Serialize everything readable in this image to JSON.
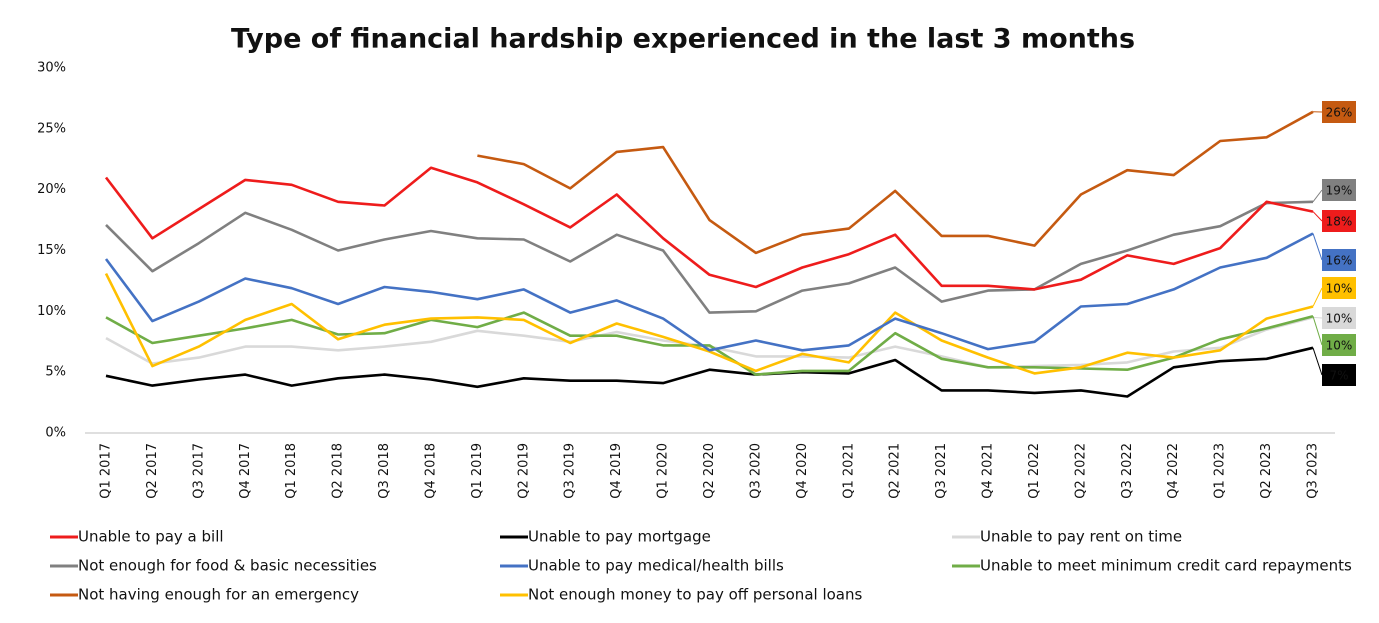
{
  "chart_data": {
    "type": "line",
    "title": "Type of financial hardship experienced in the last 3 months",
    "categories": [
      "Q1 2017",
      "Q2 2017",
      "Q3 2017",
      "Q4 2017",
      "Q1 2018",
      "Q2 2018",
      "Q3 2018",
      "Q4 2018",
      "Q1 2019",
      "Q2 2019",
      "Q3 2019",
      "Q4 2019",
      "Q1 2020",
      "Q2 2020",
      "Q3 2020",
      "Q4 2020",
      "Q1 2021",
      "Q2 2021",
      "Q3 2021",
      "Q4 2021",
      "Q1 2022",
      "Q2 2022",
      "Q3 2022",
      "Q4 2022",
      "Q1 2023",
      "Q2 2023",
      "Q3 2023"
    ],
    "ylim": [
      0,
      30
    ],
    "yticks": [
      {
        "value": 0,
        "label": "0%"
      },
      {
        "value": 5,
        "label": "5%"
      },
      {
        "value": 10,
        "label": "10%"
      },
      {
        "value": 15,
        "label": "15%"
      },
      {
        "value": 20,
        "label": "20%"
      },
      {
        "value": 25,
        "label": "25%"
      },
      {
        "value": 30,
        "label": "30%"
      }
    ],
    "grid": false,
    "legend": "bottom",
    "series": [
      {
        "name": "Unable to pay a bill",
        "color": "#ee1c1c",
        "values": [
          21.0,
          16.0,
          18.4,
          20.8,
          20.4,
          19.0,
          18.7,
          21.8,
          20.6,
          18.8,
          16.9,
          19.6,
          16.0,
          13.0,
          12.0,
          13.6,
          14.7,
          16.3,
          12.1,
          12.1,
          11.8,
          12.6,
          14.6,
          13.9,
          15.2,
          19.0,
          18.2
        ],
        "value_labels": [
          null,
          null,
          null,
          null,
          null,
          null,
          null,
          null,
          null,
          null,
          null,
          null,
          null,
          null,
          null,
          null,
          null,
          null,
          null,
          null,
          null,
          null,
          null,
          null,
          null,
          null,
          "18%"
        ]
      },
      {
        "name": "Unable to pay mortgage",
        "color": "#000000",
        "values": [
          4.7,
          3.9,
          4.4,
          4.8,
          3.9,
          4.5,
          4.8,
          4.4,
          3.8,
          4.5,
          4.3,
          4.3,
          4.1,
          5.2,
          4.8,
          5.0,
          4.9,
          6.0,
          3.5,
          3.5,
          3.3,
          3.5,
          3.0,
          5.4,
          5.9,
          6.1,
          7.0
        ],
        "value_labels": [
          null,
          null,
          null,
          null,
          null,
          null,
          null,
          null,
          null,
          null,
          null,
          null,
          null,
          null,
          null,
          null,
          null,
          null,
          null,
          null,
          null,
          null,
          null,
          null,
          null,
          null,
          "7%"
        ]
      },
      {
        "name": "Unable to pay rent on time",
        "color": "#d9d9d9",
        "values": [
          7.8,
          5.7,
          6.2,
          7.1,
          7.1,
          6.8,
          7.1,
          7.5,
          8.4,
          8.0,
          7.5,
          8.3,
          7.6,
          7.1,
          6.3,
          6.3,
          6.2,
          7.1,
          6.3,
          5.4,
          5.5,
          5.6,
          5.8,
          6.7,
          7.0,
          8.5,
          9.5
        ],
        "value_labels": [
          null,
          null,
          null,
          null,
          null,
          null,
          null,
          null,
          null,
          null,
          null,
          null,
          null,
          null,
          null,
          null,
          null,
          null,
          null,
          null,
          null,
          null,
          null,
          null,
          null,
          null,
          "10%"
        ]
      },
      {
        "name": "Not enough for food & basic necessities",
        "color": "#808080",
        "values": [
          17.1,
          13.3,
          15.6,
          18.1,
          16.7,
          15.0,
          15.9,
          16.6,
          16.0,
          15.9,
          14.1,
          16.3,
          15.0,
          9.9,
          10.0,
          11.7,
          12.3,
          13.6,
          10.8,
          11.7,
          11.8,
          13.9,
          15.0,
          16.3,
          17.0,
          18.9,
          19.0
        ],
        "value_labels": [
          null,
          null,
          null,
          null,
          null,
          null,
          null,
          null,
          null,
          null,
          null,
          null,
          null,
          null,
          null,
          null,
          null,
          null,
          null,
          null,
          null,
          null,
          null,
          null,
          null,
          null,
          "19%"
        ]
      },
      {
        "name": "Unable to pay medical/health bills",
        "color": "#4472c4",
        "values": [
          14.3,
          9.2,
          10.8,
          12.7,
          11.9,
          10.6,
          12.0,
          11.6,
          11.0,
          11.8,
          9.9,
          10.9,
          9.4,
          6.8,
          7.6,
          6.8,
          7.2,
          9.4,
          8.2,
          6.9,
          7.5,
          10.4,
          10.6,
          11.8,
          13.6,
          14.4,
          16.4
        ],
        "value_labels": [
          null,
          null,
          null,
          null,
          null,
          null,
          null,
          null,
          null,
          null,
          null,
          null,
          null,
          null,
          null,
          null,
          null,
          null,
          null,
          null,
          null,
          null,
          null,
          null,
          null,
          null,
          "16%"
        ]
      },
      {
        "name": "Unable to meet minimum credit card repayments",
        "color": "#70ad47",
        "values": [
          9.5,
          7.4,
          8.0,
          8.6,
          9.3,
          8.1,
          8.2,
          9.3,
          8.7,
          9.9,
          8.0,
          8.0,
          7.2,
          7.2,
          4.8,
          5.1,
          5.1,
          8.2,
          6.1,
          5.4,
          5.4,
          5.3,
          5.2,
          6.2,
          7.7,
          8.6,
          9.6
        ],
        "value_labels": [
          null,
          null,
          null,
          null,
          null,
          null,
          null,
          null,
          null,
          null,
          null,
          null,
          null,
          null,
          null,
          null,
          null,
          null,
          null,
          null,
          null,
          null,
          null,
          null,
          null,
          null,
          "10%"
        ]
      },
      {
        "name": "Not having enough for an emergency",
        "color": "#c55a11",
        "values": [
          null,
          null,
          null,
          null,
          null,
          null,
          null,
          null,
          22.8,
          22.1,
          20.1,
          23.1,
          23.5,
          17.5,
          14.8,
          16.3,
          16.8,
          19.9,
          16.2,
          16.2,
          15.4,
          19.6,
          21.6,
          21.2,
          24.0,
          24.3,
          26.4
        ],
        "value_labels": [
          null,
          null,
          null,
          null,
          null,
          null,
          null,
          null,
          null,
          null,
          null,
          null,
          null,
          null,
          null,
          null,
          null,
          null,
          null,
          null,
          null,
          null,
          null,
          null,
          null,
          null,
          "26%"
        ]
      },
      {
        "name": "Not enough money to pay off personal loans",
        "color": "#ffc000",
        "values": [
          13.1,
          5.5,
          7.1,
          9.3,
          10.6,
          7.7,
          8.9,
          9.4,
          9.5,
          9.3,
          7.4,
          9.0,
          7.9,
          6.7,
          5.1,
          6.5,
          5.8,
          9.9,
          7.6,
          6.2,
          4.9,
          5.4,
          6.6,
          6.2,
          6.8,
          9.4,
          10.4
        ],
        "value_labels": [
          null,
          null,
          null,
          null,
          null,
          null,
          null,
          null,
          null,
          null,
          null,
          null,
          null,
          null,
          null,
          null,
          null,
          null,
          null,
          null,
          null,
          null,
          null,
          null,
          null,
          null,
          "10%"
        ]
      }
    ]
  }
}
